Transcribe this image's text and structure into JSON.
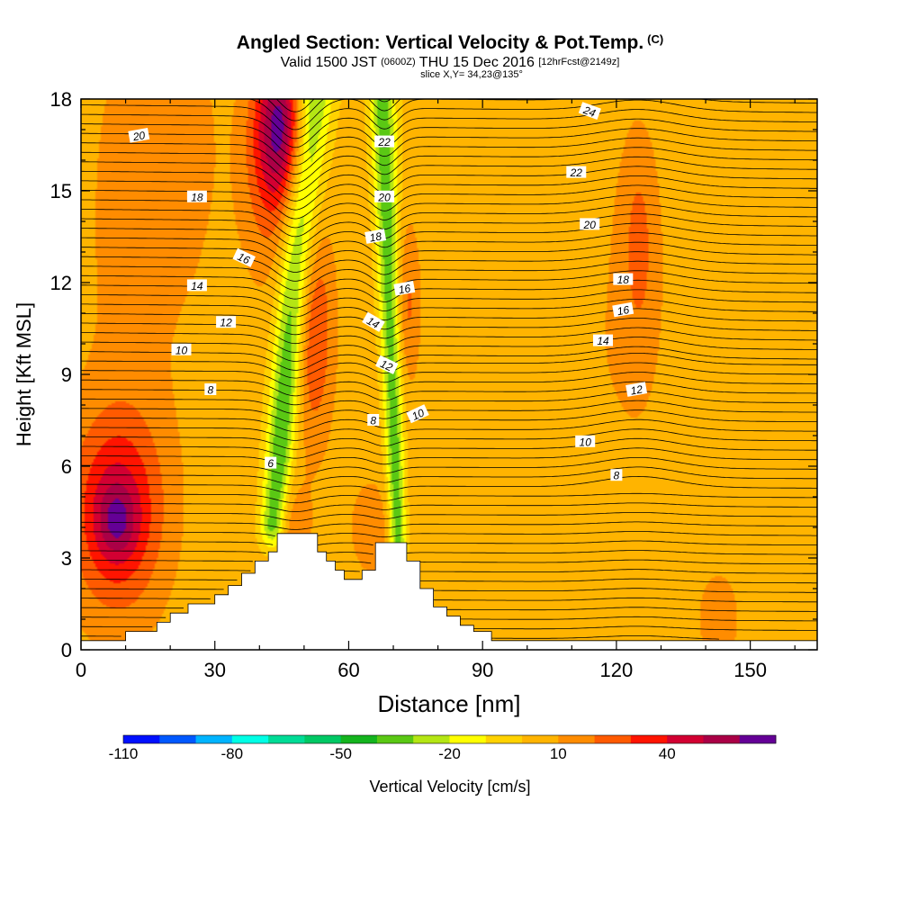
{
  "header": {
    "title": "Angled Section: Vertical Velocity & Pot.Temp.",
    "title_unit": "(C)",
    "subtitle_valid": "Valid 1500 JST",
    "subtitle_utc": "(0600Z)",
    "subtitle_date": "THU 15 Dec 2016",
    "subtitle_fcst": "[12hrFcst@2149z]",
    "slice": "slice X,Y= 34,23@135°"
  },
  "chart_data": {
    "type": "heatmap",
    "title": "Angled Section: Vertical Velocity & Pot.Temp.",
    "xlabel": "Distance [nm]",
    "ylabel": "Height [Kft MSL]",
    "xlim": [
      0,
      165
    ],
    "ylim": [
      0,
      18
    ],
    "x_ticks": [
      0,
      30,
      60,
      90,
      120,
      150
    ],
    "y_ticks": [
      0,
      3,
      6,
      9,
      12,
      15,
      18
    ],
    "colorbar": {
      "label": "Vertical Velocity [cm/s]",
      "tick_labels": [
        "-110",
        "-80",
        "-50",
        "-20",
        "10",
        "40"
      ],
      "tick_values": [
        -110,
        -80,
        -50,
        -20,
        10,
        40
      ],
      "levels": [
        -110,
        -100,
        -90,
        -80,
        -70,
        -60,
        -50,
        -40,
        -30,
        -20,
        -10,
        0,
        10,
        20,
        30,
        40,
        50,
        60
      ],
      "colors": [
        "#0010ff",
        "#0058ff",
        "#00b4ff",
        "#00ffe6",
        "#00dc96",
        "#00c864",
        "#14b41e",
        "#5ac814",
        "#b4e614",
        "#ffff00",
        "#ffd200",
        "#ffb400",
        "#ff8c00",
        "#ff5a00",
        "#ff1400",
        "#d20032",
        "#aa0046",
        "#640096"
      ]
    },
    "background_velocity_cm_s": 5,
    "velocity_features": [
      {
        "x": 8,
        "y": 4.5,
        "sx": 7,
        "sy": 2.2,
        "value": 40
      },
      {
        "x": 8,
        "y": 4.2,
        "sx": 3,
        "sy": 0.8,
        "value": 20
      },
      {
        "x": 12,
        "y": 14,
        "sx": 9,
        "sy": 6,
        "value": 8
      },
      {
        "x": 24,
        "y": 16.5,
        "sx": 5,
        "sy": 3,
        "value": 7
      },
      {
        "x": 45,
        "y": 17.2,
        "sx": 4,
        "sy": 1.8,
        "value": 50
      },
      {
        "x": 43,
        "y": 15.5,
        "sx": 5,
        "sy": 2.5,
        "value": 18
      },
      {
        "x": 52,
        "y": 10.5,
        "sx": 3,
        "sy": 2.5,
        "value": 28
      },
      {
        "x": 73,
        "y": 11.3,
        "sx": 2,
        "sy": 1.8,
        "value": 18
      },
      {
        "x": 125,
        "y": 13.2,
        "sx": 2.5,
        "sy": 2.2,
        "value": 16
      },
      {
        "x": 120,
        "y": 10,
        "sx": 14,
        "sy": 6,
        "value": 5
      },
      {
        "x": 47,
        "y": 4,
        "sx": 3,
        "sy": 1,
        "value": 14
      },
      {
        "x": 65,
        "y": 4,
        "sx": 3,
        "sy": 1,
        "value": 14
      },
      {
        "x": 102,
        "y": 5,
        "sx": 4,
        "sy": 2,
        "value": -5
      },
      {
        "x": 143,
        "y": 1,
        "sx": 3,
        "sy": 1,
        "value": 12
      }
    ],
    "downdraft_bands": [
      {
        "x_top": 52,
        "x_bottom": 43,
        "y_top": 18.5,
        "y_bottom": 4,
        "width": 2.5,
        "value": -45
      },
      {
        "x_top": 67.5,
        "x_bottom": 71,
        "y_top": 18.5,
        "y_bottom": 3.5,
        "width": 1.6,
        "value": -42
      }
    ],
    "terrain_kft": [
      [
        0,
        0.3
      ],
      [
        9,
        0.3
      ],
      [
        10,
        0.6
      ],
      [
        16,
        0.6
      ],
      [
        17,
        0.9
      ],
      [
        19,
        0.9
      ],
      [
        20,
        1.2
      ],
      [
        23,
        1.2
      ],
      [
        24,
        1.5
      ],
      [
        29,
        1.5
      ],
      [
        30,
        1.8
      ],
      [
        32,
        1.8
      ],
      [
        33,
        2.1
      ],
      [
        35,
        2.1
      ],
      [
        36,
        2.5
      ],
      [
        38,
        2.5
      ],
      [
        39,
        2.9
      ],
      [
        41,
        2.9
      ],
      [
        42,
        3.2
      ],
      [
        43,
        3.2
      ],
      [
        44,
        3.8
      ],
      [
        52,
        3.8
      ],
      [
        53,
        3.2
      ],
      [
        54,
        3.2
      ],
      [
        55,
        2.9
      ],
      [
        56,
        2.9
      ],
      [
        57,
        2.6
      ],
      [
        58,
        2.6
      ],
      [
        59,
        2.3
      ],
      [
        62,
        2.3
      ],
      [
        63,
        2.6
      ],
      [
        65,
        2.6
      ],
      [
        66,
        3.5
      ],
      [
        72,
        3.5
      ],
      [
        73,
        2.9
      ],
      [
        75,
        2.9
      ],
      [
        76,
        2.0
      ],
      [
        78,
        2.0
      ],
      [
        79,
        1.4
      ],
      [
        81,
        1.4
      ],
      [
        82,
        1.1
      ],
      [
        84,
        1.1
      ],
      [
        85,
        0.8
      ],
      [
        87,
        0.8
      ],
      [
        88,
        0.6
      ],
      [
        91,
        0.6
      ],
      [
        92,
        0.3
      ],
      [
        165,
        0.3
      ]
    ],
    "isentropes": [
      {
        "theta": 6,
        "label_at": 43
      },
      {
        "theta": 8,
        "label_at": 63
      },
      {
        "theta": 10,
        "label_at": 123
      },
      {
        "theta": 12,
        "label_at": 130
      },
      {
        "theta": 14,
        "label_at": 118
      },
      {
        "theta": 16,
        "label_at": 123
      },
      {
        "theta": 18,
        "label_at": 122
      },
      {
        "theta": 20,
        "label_at": 114
      },
      {
        "theta": 22,
        "label_at": 111
      },
      {
        "theta": 24,
        "label_at": 113
      }
    ],
    "contour_labels": [
      {
        "text": "20",
        "x": 13,
        "y": 16.8,
        "angle": -10
      },
      {
        "text": "18",
        "x": 26,
        "y": 14.8,
        "angle": 0
      },
      {
        "text": "16",
        "x": 36.5,
        "y": 12.8,
        "angle": 25
      },
      {
        "text": "14",
        "x": 26,
        "y": 11.9,
        "angle": 0
      },
      {
        "text": "12",
        "x": 32.5,
        "y": 10.7,
        "angle": 0
      },
      {
        "text": "10",
        "x": 22.5,
        "y": 9.8,
        "angle": 0
      },
      {
        "text": "8",
        "x": 29,
        "y": 8.5,
        "angle": 0
      },
      {
        "text": "6",
        "x": 42.5,
        "y": 6.1,
        "angle": 0
      },
      {
        "text": "22",
        "x": 68,
        "y": 16.6,
        "angle": 0
      },
      {
        "text": "20",
        "x": 68,
        "y": 14.8,
        "angle": 0
      },
      {
        "text": "18",
        "x": 66,
        "y": 13.5,
        "angle": -10
      },
      {
        "text": "16",
        "x": 72.5,
        "y": 11.8,
        "angle": -10
      },
      {
        "text": "14",
        "x": 65.5,
        "y": 10.7,
        "angle": 30
      },
      {
        "text": "12",
        "x": 68.5,
        "y": 9.3,
        "angle": 25
      },
      {
        "text": "10",
        "x": 75.5,
        "y": 7.7,
        "angle": -25
      },
      {
        "text": "8",
        "x": 65.5,
        "y": 7.5,
        "angle": 0
      },
      {
        "text": "24",
        "x": 114,
        "y": 17.6,
        "angle": 20
      },
      {
        "text": "22",
        "x": 111,
        "y": 15.6,
        "angle": 0
      },
      {
        "text": "20",
        "x": 114,
        "y": 13.9,
        "angle": 0
      },
      {
        "text": "18",
        "x": 121.5,
        "y": 12.1,
        "angle": 0
      },
      {
        "text": "16",
        "x": 121.5,
        "y": 11.1,
        "angle": -10
      },
      {
        "text": "14",
        "x": 117,
        "y": 10.1,
        "angle": 0
      },
      {
        "text": "12",
        "x": 124.5,
        "y": 8.5,
        "angle": -10
      },
      {
        "text": "10",
        "x": 113,
        "y": 6.8,
        "angle": 0
      },
      {
        "text": "8",
        "x": 120,
        "y": 5.7,
        "angle": 0
      }
    ]
  }
}
